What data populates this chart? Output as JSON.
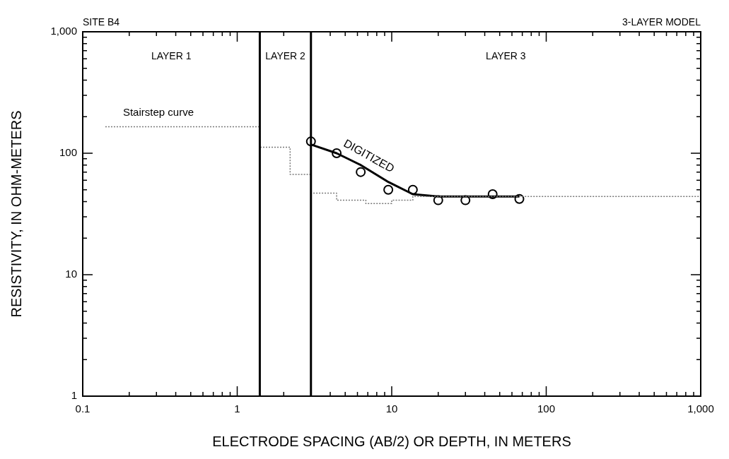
{
  "chart_data": {
    "type": "line",
    "title": "SITE B4",
    "subtitle": "3-LAYER MODEL",
    "xlabel": "ELECTRODE SPACING (AB/2) OR DEPTH, IN METERS",
    "ylabel": "RESISTIVITY, IN OHM-METERS",
    "log": "xy",
    "xlim": [
      0.1,
      1000
    ],
    "ylim": [
      1,
      1000
    ],
    "xticks": [
      0.1,
      {
        "value": 0.2,
        "label": null
      },
      {
        "value": 0.3,
        "label": null
      },
      {
        "value": 0.4,
        "label": null
      },
      {
        "value": 0.5,
        "label": null
      },
      {
        "value": 0.6,
        "label": null
      },
      {
        "value": 0.7,
        "label": null
      },
      {
        "value": 0.8,
        "label": null
      },
      {
        "value": 0.9,
        "label": null
      },
      1,
      {
        "value": 2,
        "label": null
      },
      {
        "value": 3,
        "label": null
      },
      {
        "value": 4,
        "label": null
      },
      {
        "value": 5,
        "label": null
      },
      {
        "value": 6,
        "label": null
      },
      {
        "value": 7,
        "label": null
      },
      {
        "value": 8,
        "label": null
      },
      {
        "value": 9,
        "label": null
      },
      10,
      {
        "value": 20,
        "label": null
      },
      {
        "value": 30,
        "label": null
      },
      {
        "value": 40,
        "label": null
      },
      {
        "value": 50,
        "label": null
      },
      {
        "value": 60,
        "label": null
      },
      {
        "value": 70,
        "label": null
      },
      {
        "value": 80,
        "label": null
      },
      {
        "value": 90,
        "label": null
      },
      100,
      {
        "value": 200,
        "label": null
      },
      {
        "value": 300,
        "label": null
      },
      {
        "value": 400,
        "label": null
      },
      {
        "value": 500,
        "label": null
      },
      {
        "value": 600,
        "label": null
      },
      {
        "value": 700,
        "label": null
      },
      {
        "value": 800,
        "label": null
      },
      {
        "value": 900,
        "label": null
      },
      {
        "value": 1000,
        "label": "1,000"
      }
    ],
    "yticks": [
      1,
      {
        "value": 2,
        "label": null
      },
      {
        "value": 3,
        "label": null
      },
      {
        "value": 4,
        "label": null
      },
      {
        "value": 5,
        "label": null
      },
      {
        "value": 6,
        "label": null
      },
      {
        "value": 7,
        "label": null
      },
      {
        "value": 8,
        "label": null
      },
      {
        "value": 9,
        "label": null
      },
      10,
      {
        "value": 20,
        "label": null
      },
      {
        "value": 30,
        "label": null
      },
      {
        "value": 40,
        "label": null
      },
      {
        "value": 50,
        "label": null
      },
      {
        "value": 60,
        "label": null
      },
      {
        "value": 70,
        "label": null
      },
      {
        "value": 80,
        "label": null
      },
      {
        "value": 90,
        "label": null
      },
      100,
      {
        "value": 200,
        "label": null
      },
      {
        "value": 300,
        "label": null
      },
      {
        "value": 400,
        "label": null
      },
      {
        "value": 500,
        "label": null
      },
      {
        "value": 600,
        "label": null
      },
      {
        "value": 700,
        "label": null
      },
      {
        "value": 800,
        "label": null
      },
      {
        "value": 900,
        "label": null
      },
      {
        "value": 1000,
        "label": "1,000"
      }
    ],
    "series": [
      {
        "type": "step",
        "name": "Stairstep curve",
        "color": "#777777",
        "line_style": "dotted",
        "x": [
          0.14,
          1.4,
          2.2,
          3,
          4.4,
          6.8,
          10,
          13.7,
          1000
        ],
        "values": [
          165,
          112,
          67,
          47,
          41,
          38.5,
          41,
          44,
          44
        ]
      },
      {
        "type": "line",
        "name": "DIGITIZED",
        "color": "#000000",
        "x": [
          3,
          4.4,
          6.3,
          9.5,
          13.7,
          20,
          67
        ],
        "values": [
          118,
          100,
          80,
          58,
          46,
          44,
          44
        ]
      },
      {
        "type": "scatter",
        "color": "#000000",
        "marker": "circle",
        "x": [
          3,
          4.4,
          6.3,
          9.5,
          13.7,
          20,
          30,
          45,
          67
        ],
        "values": [
          125,
          100,
          70,
          50,
          50,
          41,
          41,
          46,
          42
        ]
      }
    ],
    "ref_lines": [
      {
        "axis": "x",
        "value": 1.4,
        "color": "#000000"
      },
      {
        "axis": "x",
        "value": 3,
        "color": "#000000"
      }
    ],
    "annotations": [
      "LAYER 1",
      "LAYER 2",
      "LAYER 3"
    ]
  }
}
